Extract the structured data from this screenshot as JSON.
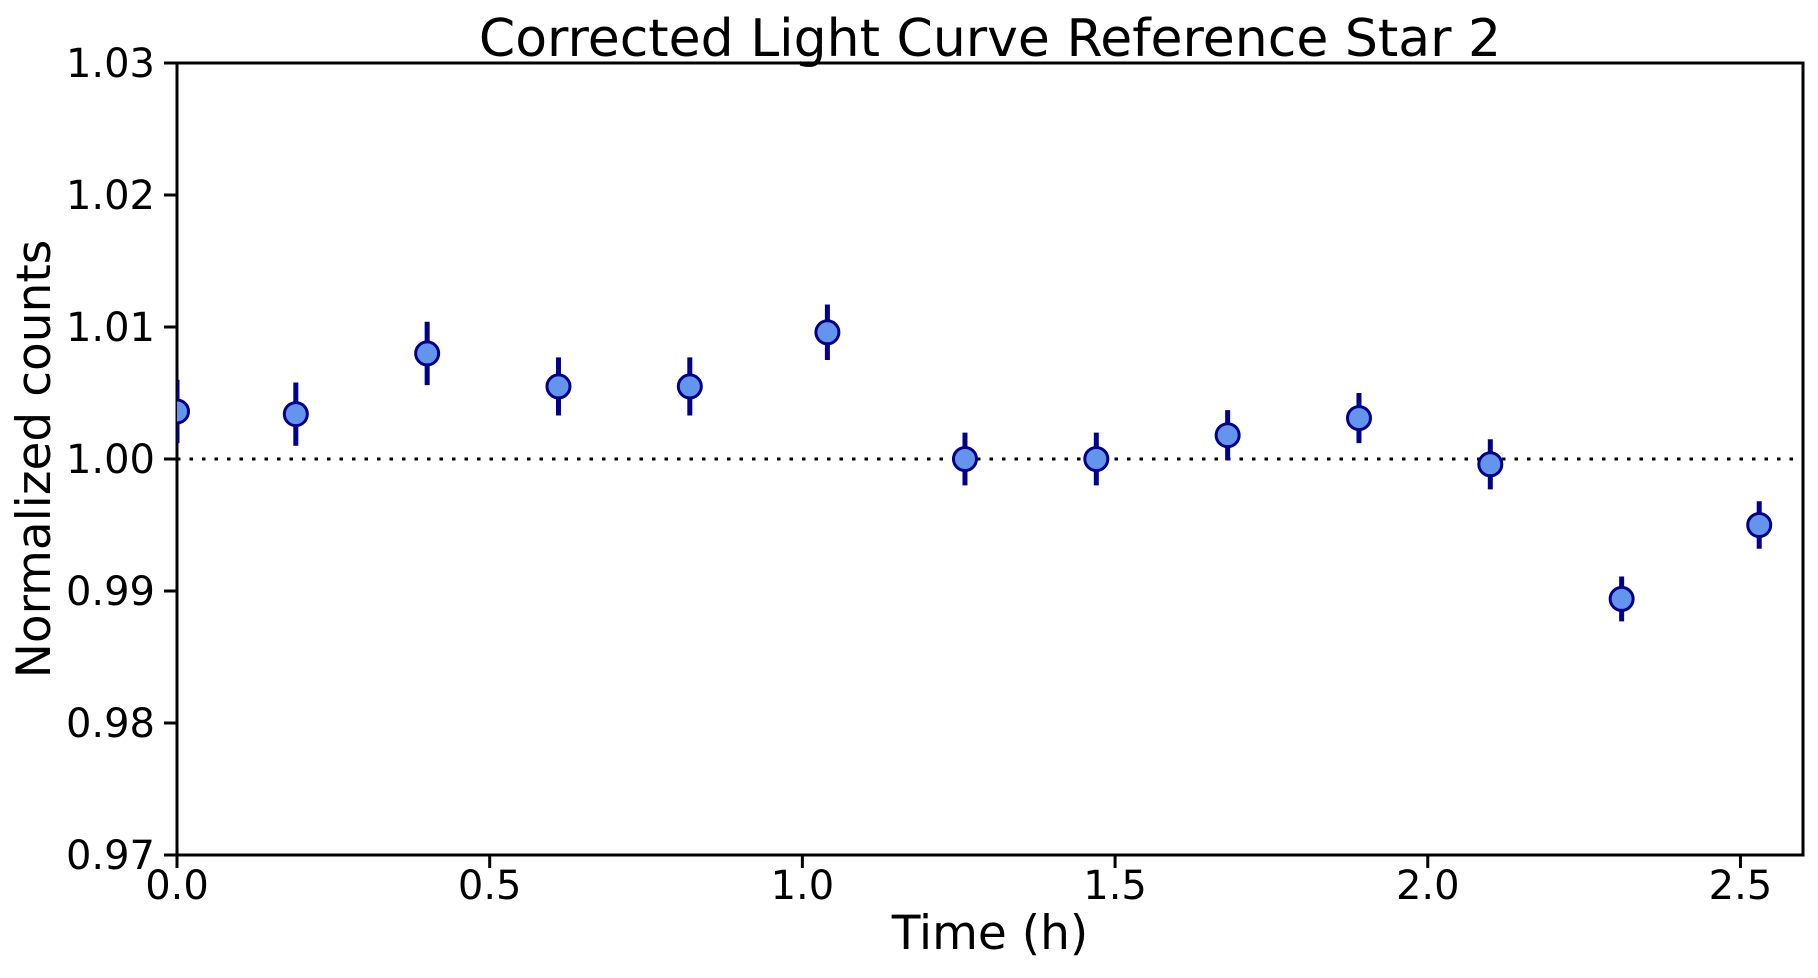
{
  "chart_data": {
    "type": "scatter",
    "title": "Corrected Light Curve Reference Star 2",
    "xlabel": "Time (h)",
    "ylabel": "Normalized counts",
    "xlim": [
      0.0,
      2.6
    ],
    "ylim": [
      0.97,
      1.03
    ],
    "x_ticks": [
      0.0,
      0.5,
      1.0,
      1.5,
      2.0,
      2.5
    ],
    "x_tick_labels": [
      "0.0",
      "0.5",
      "1.0",
      "1.5",
      "2.0",
      "2.5"
    ],
    "y_ticks": [
      0.97,
      0.98,
      0.99,
      1.0,
      1.01,
      1.02,
      1.03
    ],
    "y_tick_labels": [
      "0.97",
      "0.98",
      "0.99",
      "1.00",
      "1.01",
      "1.02",
      "1.03"
    ],
    "grid": false,
    "legend": false,
    "reference_line": {
      "y": 1.0,
      "style": "dotted",
      "color": "#000000"
    },
    "series": [
      {
        "name": "Reference Star 2",
        "marker": "circle",
        "marker_color": "#6495ED",
        "marker_edge_color": "#00008B",
        "errorbar_color": "#00008B",
        "x": [
          0.0,
          0.19,
          0.4,
          0.61,
          0.82,
          1.04,
          1.26,
          1.47,
          1.68,
          1.89,
          2.1,
          2.31,
          2.53
        ],
        "y": [
          1.0036,
          1.0034,
          1.008,
          1.0055,
          1.0055,
          1.0096,
          1.0,
          1.0,
          1.0018,
          1.0031,
          0.9996,
          0.9894,
          0.995
        ],
        "yerr": [
          0.0024,
          0.0024,
          0.0024,
          0.0022,
          0.0022,
          0.0021,
          0.002,
          0.002,
          0.0019,
          0.0019,
          0.0019,
          0.0017,
          0.0018
        ]
      }
    ],
    "colors": {
      "background": "#ffffff",
      "axes": "#000000",
      "text": "#000000"
    }
  }
}
